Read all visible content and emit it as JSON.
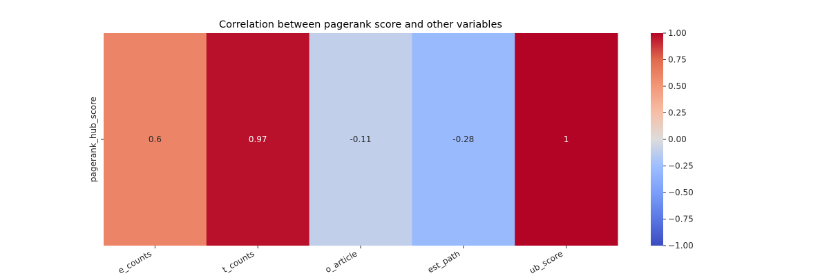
{
  "chart_data": {
    "type": "heatmap",
    "title": "Correlation between pagerank score and other variables",
    "rows": [
      "pagerank_hub_score"
    ],
    "columns": [
      "e_counts",
      "t_counts",
      "o_article",
      "est_path",
      "ub_score"
    ],
    "values": [
      [
        0.6,
        0.97,
        -0.11,
        -0.28,
        1
      ]
    ],
    "cell_labels": [
      "0.6",
      "0.97",
      "-0.11",
      "-0.28",
      "1"
    ],
    "colormap": "coolwarm",
    "vmin": -1,
    "vmax": 1,
    "colorbar_ticks": [
      "1.00",
      "0.75",
      "0.50",
      "0.25",
      "0.00",
      "−0.25",
      "−0.50",
      "−0.75",
      "−1.00"
    ]
  }
}
